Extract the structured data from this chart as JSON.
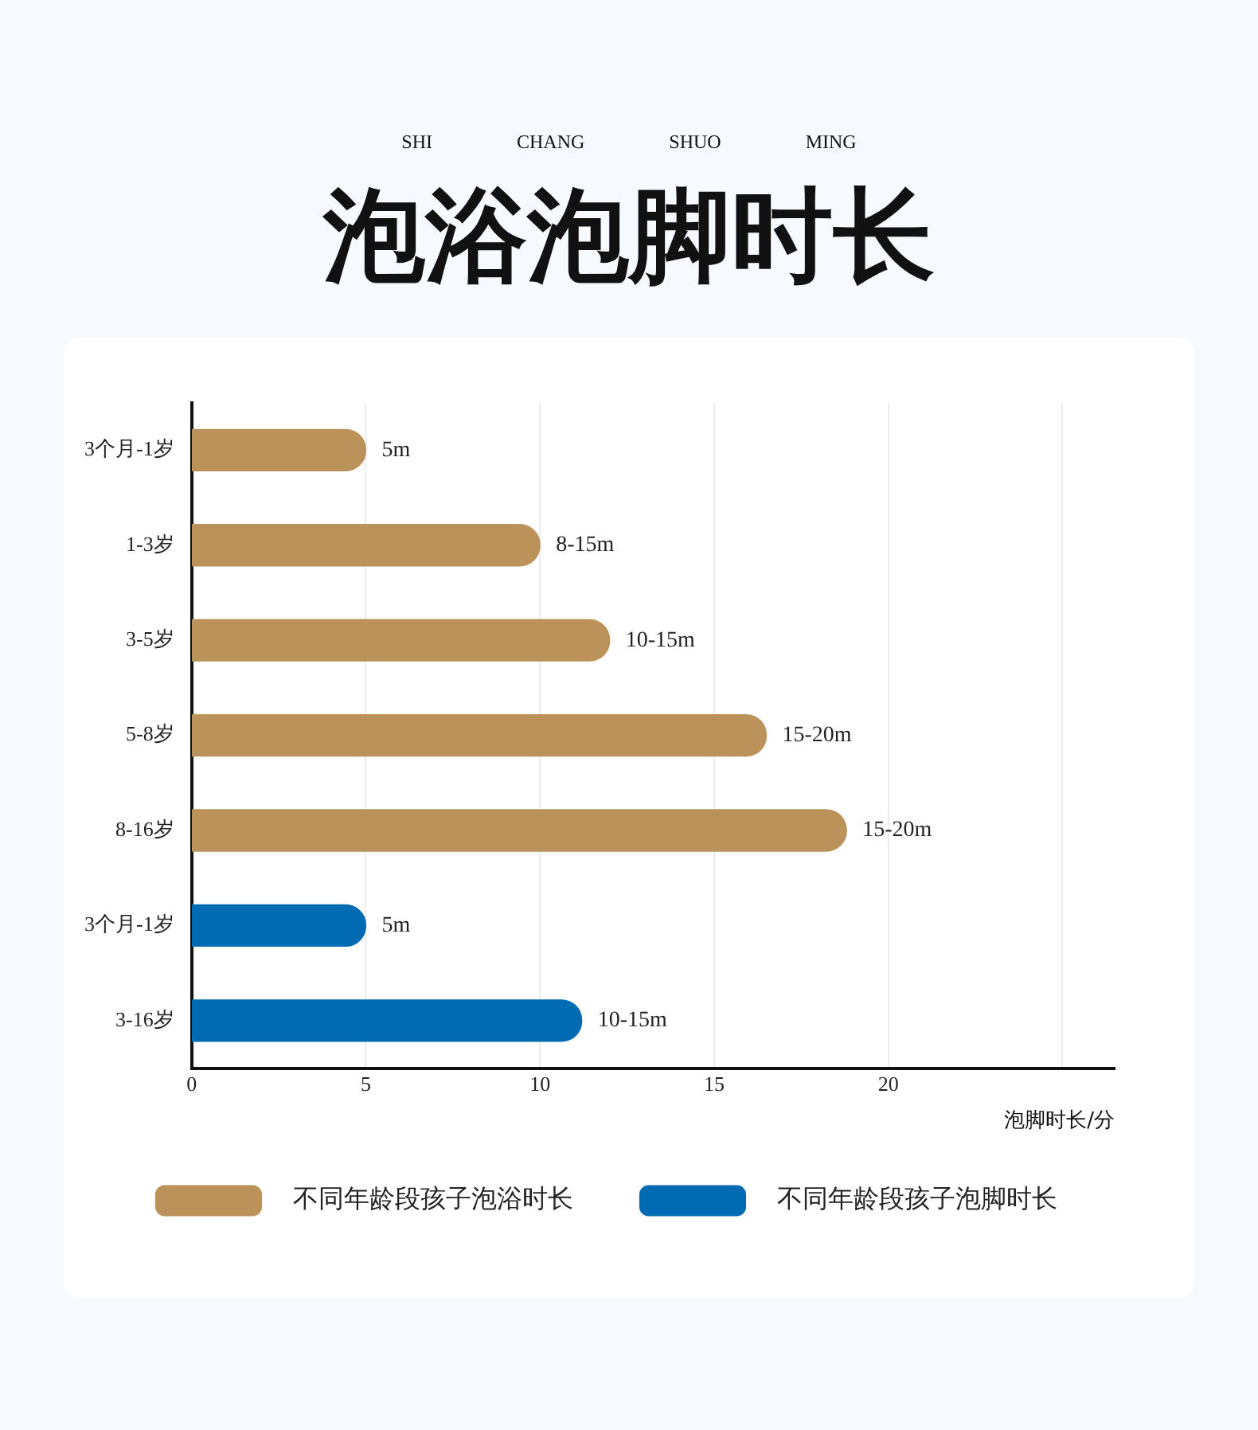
{
  "chart_data": {
    "type": "bar",
    "orientation": "horizontal",
    "title": "泡浴泡脚时长",
    "subtitle": "SHI CHANG SHUO MING",
    "xlabel": "泡脚时长/分",
    "categories": [
      "3个月-1岁",
      "1-3岁",
      "3-5岁",
      "5-8岁",
      "8-16岁",
      "3个月-1岁",
      "3-16岁"
    ],
    "series": [
      {
        "name": "不同年龄段孩子泡浴时长",
        "color": "#bb925a",
        "values": [
          5,
          10,
          12,
          16.5,
          18.8,
          null,
          null
        ],
        "value_labels": [
          "5m",
          "8-15m",
          "10-15m",
          "15-20m",
          "15-20m",
          null,
          null
        ]
      },
      {
        "name": "不同年龄段孩子泡脚时长",
        "color": "#006bb3",
        "values": [
          null,
          null,
          null,
          null,
          null,
          5,
          11.2
        ],
        "value_labels": [
          null,
          null,
          null,
          null,
          null,
          "5m",
          "10-15m"
        ]
      }
    ],
    "xlim": [
      0,
      26.5
    ],
    "xticks": [
      0,
      5,
      10,
      15,
      20,
      {
        "value": 25,
        "label": null
      }
    ],
    "grid": "x",
    "legend": "bottom"
  }
}
